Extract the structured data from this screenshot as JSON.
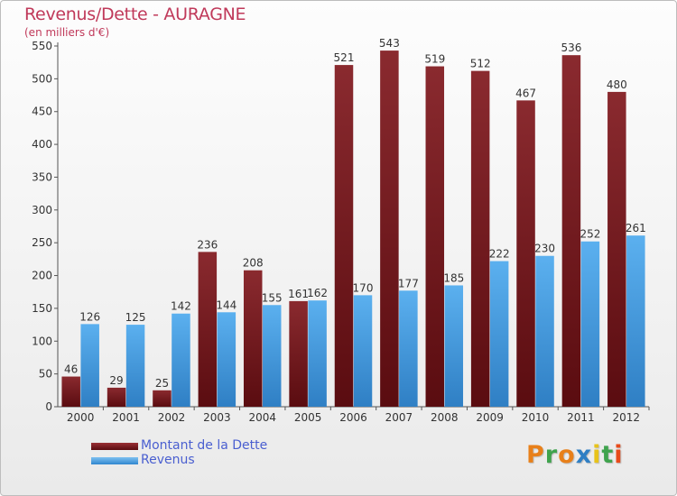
{
  "title": "Revenus/Dette - AURAGNE",
  "subtitle": "(en milliers d'€)",
  "logo_text": "Proxiti",
  "colors": {
    "dette": "#7a1a1e",
    "revenus": "#4a9fe0",
    "axis_text": "#333333",
    "title": "#c0395a"
  },
  "chart_data": {
    "type": "bar",
    "title": "Revenus/Dette - AURAGNE",
    "subtitle": "(en milliers d'€)",
    "categories": [
      "2000",
      "2001",
      "2002",
      "2003",
      "2004",
      "2005",
      "2006",
      "2007",
      "2008",
      "2009",
      "2010",
      "2011",
      "2012"
    ],
    "series": [
      {
        "name": "Montant de la Dette",
        "color": "#7a1a1e",
        "values": [
          46,
          29,
          25,
          236,
          208,
          161,
          521,
          543,
          519,
          512,
          467,
          536,
          480
        ]
      },
      {
        "name": "Revenus",
        "color": "#4a9fe0",
        "values": [
          126,
          125,
          142,
          144,
          155,
          162,
          170,
          177,
          185,
          222,
          230,
          252,
          261
        ]
      }
    ],
    "yticks": [
      0,
      50,
      100,
      150,
      200,
      250,
      300,
      350,
      400,
      450,
      500,
      550
    ],
    "ylim": [
      0,
      550
    ],
    "grid": false,
    "legend_position": "bottom-left"
  }
}
